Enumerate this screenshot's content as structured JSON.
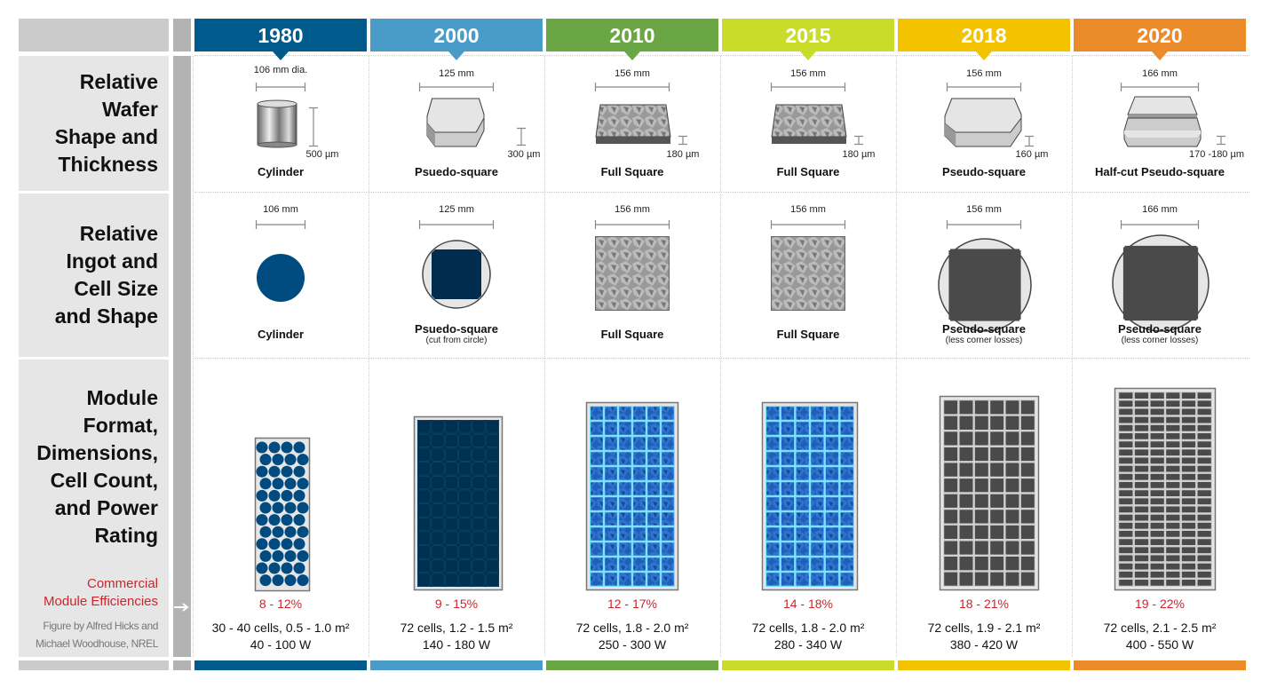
{
  "row_titles": {
    "wafer": [
      "Relative",
      "Wafer",
      "Shape and",
      "Thickness"
    ],
    "ingot": [
      "Relative",
      "Ingot and",
      "Cell Size",
      "and Shape"
    ],
    "module": [
      "Module",
      "Format,",
      "Dimensions,",
      "Cell Count,",
      "and Power",
      "Rating"
    ]
  },
  "efficiency_label": [
    "Commercial",
    "Module Efficiencies"
  ],
  "credit": [
    "Figure by Alfred Hicks and",
    "Michael Woodhouse, NREL"
  ],
  "colors": {
    "efficiency": "#c8272d",
    "label_bg": "#e6e6e6",
    "strip": "#b3b3b3"
  },
  "columns": [
    {
      "year": "1980",
      "color": "#005a8c",
      "wafer_width": "106 mm dia.",
      "wafer_shape": "cylinder",
      "thickness": "500 µm",
      "wafer_label": "Cylinder",
      "ingot_width": "106 mm",
      "ingot_shape": "circle",
      "ingot_label": "Cylinder",
      "ingot_sub": "",
      "module_style": "round-cells",
      "efficiency": "8 - 12%",
      "specs": [
        "30 - 40 cells, 0.5 - 1.0 m²",
        "40 - 100 W"
      ]
    },
    {
      "year": "2000",
      "color": "#4a9cc8",
      "wafer_width": "125 mm",
      "wafer_shape": "pseudo-square",
      "thickness": "300 µm",
      "wafer_label": "Psuedo-square",
      "ingot_width": "125 mm",
      "ingot_shape": "pseudo-square-in-circle",
      "ingot_label": "Psuedo-square",
      "ingot_sub": "(cut from circle)",
      "module_style": "mono-dark",
      "efficiency": "9 - 15%",
      "specs": [
        "72 cells, 1.2 - 1.5 m²",
        "140 - 180 W"
      ]
    },
    {
      "year": "2010",
      "color": "#6aa644",
      "wafer_width": "156 mm",
      "wafer_shape": "full-square",
      "thickness": "180 µm",
      "wafer_label": "Full Square",
      "ingot_width": "156 mm",
      "ingot_shape": "multi-square",
      "ingot_label": "Full Square",
      "ingot_sub": "",
      "module_style": "multi-blue",
      "efficiency": "12 - 17%",
      "specs": [
        "72 cells, 1.8 - 2.0 m²",
        "250 - 300 W"
      ]
    },
    {
      "year": "2015",
      "color": "#c9dc2a",
      "wafer_width": "156 mm",
      "wafer_shape": "full-square",
      "thickness": "180 µm",
      "wafer_label": "Full Square",
      "ingot_width": "156 mm",
      "ingot_shape": "multi-square",
      "ingot_label": "Full Square",
      "ingot_sub": "",
      "module_style": "multi-blue",
      "efficiency": "14 - 18%",
      "specs": [
        "72 cells, 1.8 - 2.0 m²",
        "280 - 340 W"
      ]
    },
    {
      "year": "2018",
      "color": "#f3c300",
      "wafer_width": "156 mm",
      "wafer_shape": "pseudo-square",
      "thickness": "160 µm",
      "wafer_label": "Pseudo-square",
      "ingot_width": "156 mm",
      "ingot_shape": "square-in-circle",
      "ingot_label": "Pseudo-square",
      "ingot_sub": "(less corner losses)",
      "module_style": "mono-gray",
      "efficiency": "18 - 21%",
      "specs": [
        "72 cells, 1.9 - 2.1 m²",
        "380 - 420 W"
      ]
    },
    {
      "year": "2020",
      "color": "#ec8b2a",
      "wafer_width": "166 mm",
      "wafer_shape": "half-cut-pseudo-square",
      "thickness": "170 -180 µm",
      "wafer_label": "Half-cut Pseudo-square",
      "ingot_width": "166 mm",
      "ingot_shape": "square-in-circle",
      "ingot_label": "Pseudo-square",
      "ingot_sub": "(less corner losses)",
      "module_style": "half-cut-gray",
      "efficiency": "19 - 22%",
      "specs": [
        "72 cells, 2.1 - 2.5 m²",
        "400 - 550 W"
      ]
    }
  ]
}
